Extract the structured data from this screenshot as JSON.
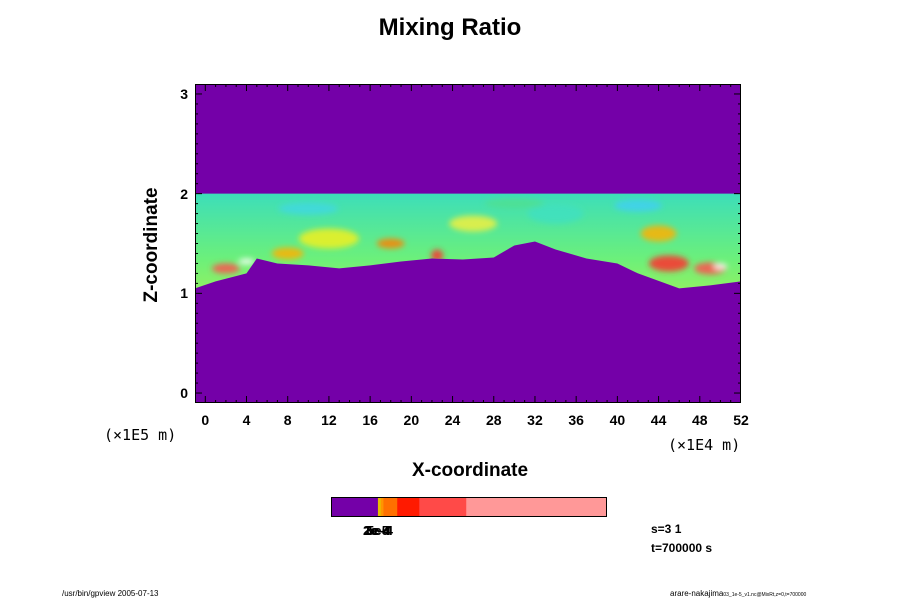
{
  "chart_data": {
    "type": "heatmap",
    "title": "Mixing Ratio",
    "xlabel": "X-coordinate",
    "ylabel": "Z-coordinate",
    "x_unit": "(×1E4 m)",
    "y_unit": "(×1E5 m)",
    "xlim": [
      -1,
      52
    ],
    "ylim": [
      -0.1,
      3.1
    ],
    "x_ticks": [
      "0",
      "4",
      "8",
      "12",
      "16",
      "20",
      "24",
      "28",
      "32",
      "36",
      "40",
      "44",
      "48",
      "52"
    ],
    "y_ticks": [
      "0",
      "1",
      "2",
      "3"
    ],
    "background_color": "#7400a8",
    "mixing_layer_top": 2.0,
    "mixing_layer_base": [
      {
        "x": -1,
        "z": 1.05
      },
      {
        "x": 1,
        "z": 1.12
      },
      {
        "x": 4,
        "z": 1.2
      },
      {
        "x": 5,
        "z": 1.35
      },
      {
        "x": 7,
        "z": 1.3
      },
      {
        "x": 10,
        "z": 1.28
      },
      {
        "x": 13,
        "z": 1.25
      },
      {
        "x": 16,
        "z": 1.28
      },
      {
        "x": 19,
        "z": 1.32
      },
      {
        "x": 22,
        "z": 1.35
      },
      {
        "x": 25,
        "z": 1.34
      },
      {
        "x": 28,
        "z": 1.36
      },
      {
        "x": 30,
        "z": 1.48
      },
      {
        "x": 32,
        "z": 1.52
      },
      {
        "x": 34,
        "z": 1.44
      },
      {
        "x": 37,
        "z": 1.35
      },
      {
        "x": 40,
        "z": 1.3
      },
      {
        "x": 42,
        "z": 1.2
      },
      {
        "x": 46,
        "z": 1.05
      },
      {
        "x": 49,
        "z": 1.08
      },
      {
        "x": 52,
        "z": 1.12
      }
    ],
    "colorbar": {
      "segments": [
        {
          "color": "#7400a8",
          "fraction": 0.17
        },
        {
          "color": "#e6c000",
          "fraction": 0.01
        },
        {
          "color": "#ff9400",
          "fraction": 0.01
        },
        {
          "color": "#ff7000",
          "fraction": 0.05
        },
        {
          "color": "#ff1a00",
          "fraction": 0.08
        },
        {
          "color": "#ff4a48",
          "fraction": 0.17
        },
        {
          "color": "#ff9898",
          "fraction": 0.51
        }
      ],
      "labels_overlapping": [
        "2e-5",
        "1e-4",
        "3e-4",
        "5e-4"
      ]
    }
  },
  "info": {
    "s_label": "s=3 1",
    "t_label": "t=700000 s"
  },
  "footer": {
    "left": "/usr/bin/gpview 2005-07-13",
    "right_main": "arare-nakajima",
    "right_small": "03_1e-5_v1.nc@MixRt,z=0,t=700000"
  }
}
